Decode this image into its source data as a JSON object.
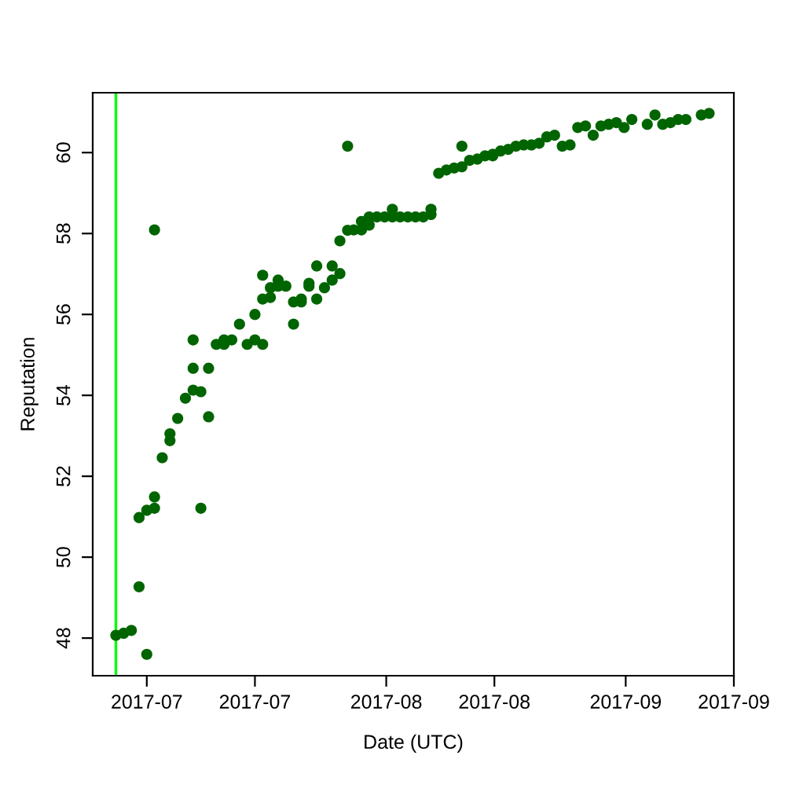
{
  "chart_data": {
    "type": "scatter",
    "xlabel": "Date (UTC)",
    "ylabel": "Reputation",
    "x": [
      "2017-06-27",
      "2017-06-28",
      "2017-06-29",
      "2017-06-30",
      "2017-06-30",
      "2017-07-01",
      "2017-07-01",
      "2017-07-02",
      "2017-07-02",
      "2017-07-02",
      "2017-07-03",
      "2017-07-04",
      "2017-07-04",
      "2017-07-05",
      "2017-07-06",
      "2017-07-07",
      "2017-07-07",
      "2017-07-07",
      "2017-07-08",
      "2017-07-08",
      "2017-07-09",
      "2017-07-09",
      "2017-07-10",
      "2017-07-11",
      "2017-07-11",
      "2017-07-12",
      "2017-07-13",
      "2017-07-14",
      "2017-07-15",
      "2017-07-15",
      "2017-07-16",
      "2017-07-16",
      "2017-07-16",
      "2017-07-17",
      "2017-07-17",
      "2017-07-18",
      "2017-07-18",
      "2017-07-19",
      "2017-07-20",
      "2017-07-20",
      "2017-07-21",
      "2017-07-21",
      "2017-07-22",
      "2017-07-22",
      "2017-07-23",
      "2017-07-23",
      "2017-07-24",
      "2017-07-25",
      "2017-07-25",
      "2017-07-26",
      "2017-07-26",
      "2017-07-27",
      "2017-07-27",
      "2017-07-27T19:00",
      "2017-07-28T19:00",
      "2017-07-28T19:00",
      "2017-07-29T19:00",
      "2017-07-29T19:00",
      "2017-07-30T19:00",
      "2017-07-31T19:00",
      "2017-08-01T19:00",
      "2017-08-01T19:00",
      "2017-08-02T19:00",
      "2017-08-03T19:00",
      "2017-08-04T19:00",
      "2017-08-05T19:00",
      "2017-08-06T19:00",
      "2017-08-06T19:00",
      "2017-08-07T19:00",
      "2017-08-08T19:00",
      "2017-08-09T19:00",
      "2017-08-10T19:00",
      "2017-08-10T19:00",
      "2017-08-11T19:00",
      "2017-08-12T19:00",
      "2017-08-13T19:00",
      "2017-08-14T19:00",
      "2017-08-14T19:00",
      "2017-08-15T19:00",
      "2017-08-16T19:00",
      "2017-08-17T19:00",
      "2017-08-18T19:00",
      "2017-08-19T19:00",
      "2017-08-20T19:00",
      "2017-08-21T19:00",
      "2017-08-22T19:00",
      "2017-08-23T19:00",
      "2017-08-24T19:00",
      "2017-08-25T19:00",
      "2017-08-26T19:00",
      "2017-08-27T19:00",
      "2017-08-28T19:00",
      "2017-08-29T19:00",
      "2017-08-30T19:00",
      "2017-08-31T19:00",
      "2017-09-01T19:00",
      "2017-09-03T19:00",
      "2017-09-04T19:00",
      "2017-09-05T19:00",
      "2017-09-06T19:00",
      "2017-09-07T19:00",
      "2017-09-08T19:00",
      "2017-09-10T19:00",
      "2017-09-11T19:00"
    ],
    "series": [
      {
        "color": "#006400",
        "values": [
          48.07,
          48.12,
          48.19,
          49.27,
          50.98,
          47.6,
          51.16,
          51.21,
          51.49,
          58.09,
          52.46,
          52.88,
          53.05,
          53.43,
          53.93,
          54.13,
          54.67,
          55.37,
          54.09,
          51.21,
          54.67,
          53.47,
          55.26,
          55.26,
          55.37,
          55.37,
          55.76,
          55.26,
          56.0,
          55.37,
          55.26,
          56.38,
          56.97,
          56.42,
          56.66,
          56.85,
          56.7,
          56.7,
          56.31,
          55.76,
          56.31,
          56.38,
          56.7,
          56.77,
          57.2,
          56.38,
          56.66,
          56.85,
          57.2,
          57.01,
          57.82,
          58.08,
          60.16,
          58.09,
          58.09,
          58.3,
          58.21,
          58.41,
          58.41,
          58.41,
          58.41,
          58.6,
          58.41,
          58.41,
          58.41,
          58.41,
          58.47,
          58.6,
          59.49,
          59.57,
          59.62,
          59.65,
          60.16,
          59.81,
          59.84,
          59.92,
          59.92,
          59.96,
          60.04,
          60.08,
          60.16,
          60.19,
          60.19,
          60.23,
          60.39,
          60.43,
          60.16,
          60.19,
          60.62,
          60.66,
          60.43,
          60.66,
          60.7,
          60.74,
          60.62,
          60.82,
          60.7,
          60.93,
          60.7,
          60.74,
          60.82,
          60.82,
          60.93,
          60.97
        ]
      }
    ],
    "xlim": [
      "2017-06-24",
      "2017-09-15"
    ],
    "xticks": [
      {
        "value": "2017-07-01",
        "label": "2017-07"
      },
      {
        "value": "2017-07-15",
        "label": "2017-07"
      },
      {
        "value": "2017-08-01",
        "label": "2017-08"
      },
      {
        "value": "2017-08-15",
        "label": "2017-08"
      },
      {
        "value": "2017-09-01",
        "label": "2017-09"
      },
      {
        "value": "2017-09-15",
        "label": "2017-09"
      }
    ],
    "ylim": [
      47.07,
      61.48
    ],
    "yticks": [
      48,
      50,
      52,
      54,
      56,
      58,
      60
    ],
    "ref_lines": [
      {
        "axis": "x",
        "value": "2017-06-27",
        "color": "#00ff00"
      }
    ],
    "marker": "circle",
    "grid": false,
    "legend": false
  }
}
